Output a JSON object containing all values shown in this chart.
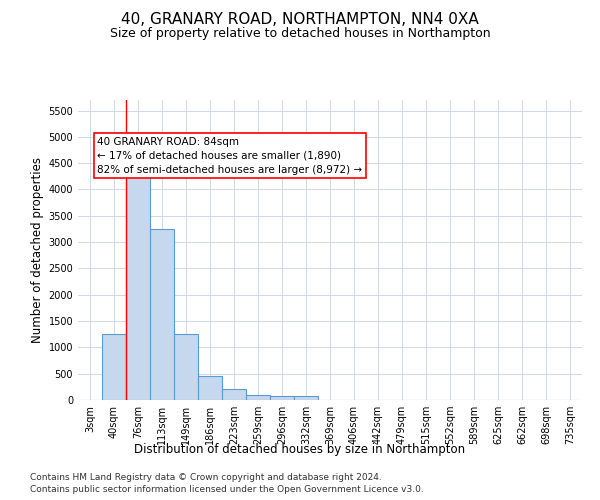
{
  "title": "40, GRANARY ROAD, NORTHAMPTON, NN4 0XA",
  "subtitle": "Size of property relative to detached houses in Northampton",
  "xlabel": "Distribution of detached houses by size in Northampton",
  "ylabel": "Number of detached properties",
  "bar_color": "#c5d8ed",
  "bar_edge_color": "#5b9bd5",
  "bar_edge_width": 0.8,
  "categories": [
    "3sqm",
    "40sqm",
    "76sqm",
    "113sqm",
    "149sqm",
    "186sqm",
    "223sqm",
    "259sqm",
    "296sqm",
    "332sqm",
    "369sqm",
    "406sqm",
    "442sqm",
    "479sqm",
    "515sqm",
    "552sqm",
    "589sqm",
    "625sqm",
    "662sqm",
    "698sqm",
    "735sqm"
  ],
  "values": [
    0,
    1250,
    4300,
    3250,
    1250,
    450,
    200,
    100,
    75,
    75,
    0,
    0,
    0,
    0,
    0,
    0,
    0,
    0,
    0,
    0,
    0
  ],
  "ylim": [
    0,
    5700
  ],
  "yticks": [
    0,
    500,
    1000,
    1500,
    2000,
    2500,
    3000,
    3500,
    4000,
    4500,
    5000,
    5500
  ],
  "red_line_x": 1.5,
  "annotation_text": "40 GRANARY ROAD: 84sqm\n← 17% of detached houses are smaller (1,890)\n82% of semi-detached houses are larger (8,972) →",
  "footer_line1": "Contains HM Land Registry data © Crown copyright and database right 2024.",
  "footer_line2": "Contains public sector information licensed under the Open Government Licence v3.0.",
  "background_color": "#ffffff",
  "grid_color": "#d0d8e8",
  "title_fontsize": 11,
  "subtitle_fontsize": 9,
  "axis_label_fontsize": 8.5,
  "tick_fontsize": 7,
  "footer_fontsize": 6.5,
  "annotation_fontsize": 7.5
}
